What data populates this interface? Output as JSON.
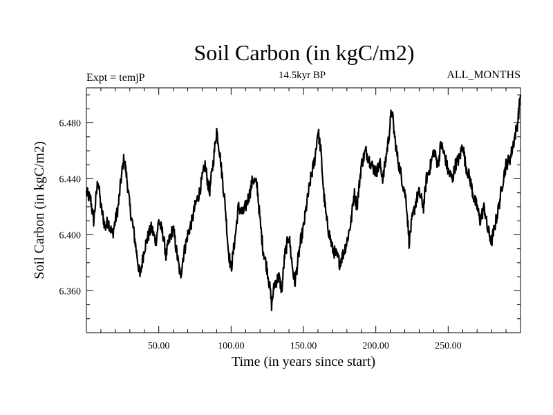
{
  "chart_data": {
    "type": "line",
    "title": "Soil Carbon (in kgC/m2)",
    "subtitle_left": "Expt = temjP",
    "subtitle_center": "14.5kyr BP",
    "subtitle_right": "ALL_MONTHS",
    "xlabel": "Time (in years since start)",
    "ylabel": "Soil Carbon (in kgC/m2)",
    "xlim": [
      0,
      300
    ],
    "ylim": [
      6.33,
      6.505
    ],
    "x_ticks": [
      {
        "value": 50,
        "label": "50.00"
      },
      {
        "value": 100,
        "label": "100.00"
      },
      {
        "value": 150,
        "label": "150.00"
      },
      {
        "value": 200,
        "label": "200.00"
      },
      {
        "value": 250,
        "label": "250.00"
      }
    ],
    "y_ticks": [
      {
        "value": 6.36,
        "label": "6.360"
      },
      {
        "value": 6.4,
        "label": "6.400"
      },
      {
        "value": 6.44,
        "label": "6.440"
      },
      {
        "value": 6.48,
        "label": "6.480"
      }
    ],
    "series": [
      {
        "name": "Soil Carbon",
        "color": "#000000",
        "x": [
          0,
          3,
          5,
          8,
          10,
          13,
          15,
          18,
          20,
          22,
          24,
          26,
          28,
          30,
          33,
          35,
          37,
          40,
          43,
          45,
          48,
          50,
          53,
          55,
          57,
          60,
          62,
          65,
          67,
          70,
          73,
          75,
          78,
          80,
          82,
          85,
          88,
          90,
          92,
          94,
          96,
          98,
          100,
          103,
          105,
          108,
          110,
          113,
          115,
          118,
          120,
          122,
          125,
          127,
          128,
          130,
          133,
          135,
          137,
          140,
          142,
          144,
          146,
          148,
          150,
          152,
          155,
          158,
          160,
          162,
          164,
          166,
          168,
          170,
          173,
          175,
          177,
          180,
          183,
          185,
          187,
          190,
          193,
          195,
          197,
          200,
          203,
          205,
          207,
          209,
          211,
          213,
          215,
          217,
          219,
          221,
          223,
          225,
          228,
          230,
          233,
          235,
          238,
          240,
          243,
          245,
          248,
          250,
          253,
          255,
          258,
          260,
          262,
          265,
          268,
          270,
          272,
          275,
          277,
          280,
          283,
          285,
          288,
          290,
          293,
          295,
          298,
          300
        ],
        "values": [
          6.43,
          6.425,
          6.41,
          6.44,
          6.42,
          6.405,
          6.41,
          6.4,
          6.41,
          6.42,
          6.44,
          6.455,
          6.44,
          6.42,
          6.4,
          6.385,
          6.37,
          6.39,
          6.4,
          6.405,
          6.395,
          6.41,
          6.4,
          6.385,
          6.395,
          6.405,
          6.39,
          6.37,
          6.385,
          6.4,
          6.41,
          6.42,
          6.43,
          6.44,
          6.45,
          6.43,
          6.455,
          6.475,
          6.46,
          6.44,
          6.42,
          6.39,
          6.375,
          6.4,
          6.42,
          6.415,
          6.42,
          6.43,
          6.44,
          6.435,
          6.41,
          6.39,
          6.375,
          6.36,
          6.35,
          6.365,
          6.37,
          6.36,
          6.385,
          6.4,
          6.38,
          6.365,
          6.38,
          6.395,
          6.405,
          6.42,
          6.44,
          6.455,
          6.475,
          6.46,
          6.43,
          6.41,
          6.4,
          6.39,
          6.385,
          6.38,
          6.385,
          6.395,
          6.41,
          6.43,
          6.42,
          6.45,
          6.46,
          6.455,
          6.45,
          6.445,
          6.45,
          6.44,
          6.455,
          6.47,
          6.49,
          6.47,
          6.455,
          6.445,
          6.435,
          6.425,
          6.395,
          6.41,
          6.425,
          6.43,
          6.42,
          6.44,
          6.45,
          6.46,
          6.45,
          6.465,
          6.455,
          6.445,
          6.44,
          6.45,
          6.455,
          6.465,
          6.45,
          6.44,
          6.425,
          6.42,
          6.41,
          6.42,
          6.405,
          6.395,
          6.41,
          6.42,
          6.44,
          6.45,
          6.455,
          6.465,
          6.48,
          6.5
        ]
      }
    ]
  }
}
